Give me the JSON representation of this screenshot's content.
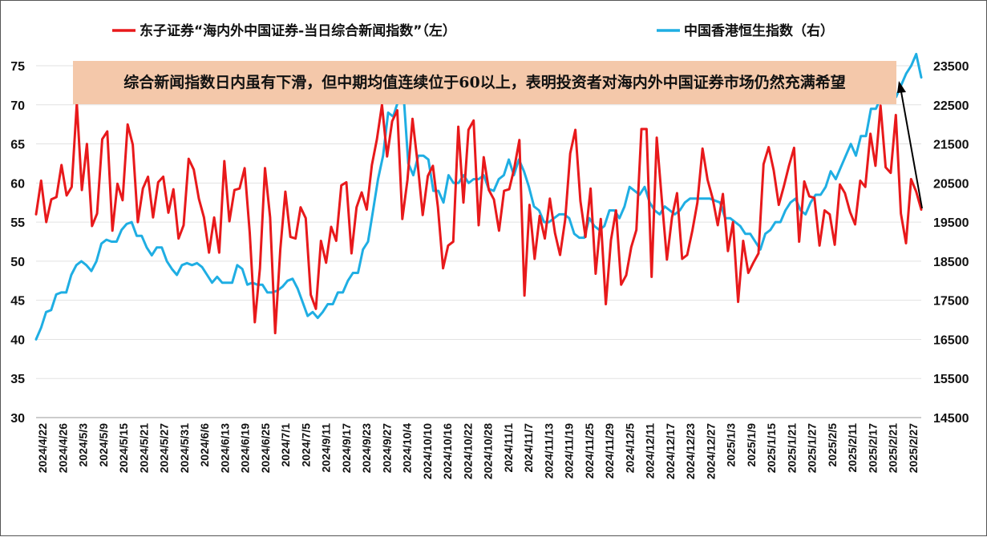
{
  "chart_data": {
    "type": "line",
    "legend": [
      {
        "name": "东子证券“海内外中国证券-当日综合新闻指数”（左）",
        "color": "#e8191b"
      },
      {
        "name": "中国香港恒生指数（右）",
        "color": "#1faee3"
      }
    ],
    "annotation": "综合新闻指数日内虽有下滑，但中期均值连续位于60以上，表明投资者对海内外中国证券市场仍然充满希望",
    "y_left": {
      "min": 30,
      "max": 75,
      "ticks": [
        30,
        35,
        40,
        45,
        50,
        55,
        60,
        65,
        70,
        75
      ]
    },
    "y_right": {
      "min": 14500,
      "max": 23500,
      "ticks": [
        14500,
        15500,
        16500,
        17500,
        18500,
        19500,
        20500,
        21500,
        22500,
        23500
      ]
    },
    "x_tick_labels": [
      "2024/4/22",
      "2024/4/26",
      "2024/5/3",
      "2024/5/9",
      "2024/5/15",
      "2024/5/21",
      "2024/5/27",
      "2024/5/31",
      "2024/6/6",
      "2024/6/13",
      "2024/6/19",
      "2024/6/25",
      "2024/7/1",
      "2024/7/5",
      "2024/9/11",
      "2024/9/17",
      "2024/9/23",
      "2024/9/27",
      "2024/10/4",
      "2024/10/10",
      "2024/10/16",
      "2024/10/22",
      "2024/10/28",
      "2024/11/1",
      "2024/11/7",
      "2024/11/13",
      "2024/11/19",
      "2024/11/25",
      "2024/11/29",
      "2024/12/5",
      "2024/12/11",
      "2024/12/17",
      "2024/12/23",
      "2024/12/27",
      "2025/1/3",
      "2025/1/9",
      "2025/1/15",
      "2025/1/21",
      "2025/1/27",
      "2025/2/5",
      "2025/2/11",
      "2025/2/17",
      "2025/2/21",
      "2025/2/27"
    ],
    "series": [
      {
        "name": "东子证券“海内外中国证券-当日综合新闻指数”（左）",
        "axis": "left",
        "color": "#e8191b",
        "values": [
          56,
          60.3,
          55,
          57.9,
          58.2,
          62.3,
          58.4,
          59.5,
          70.2,
          59.1,
          65,
          54.5,
          56.1,
          65.6,
          66.6,
          53.9,
          59.9,
          57.8,
          67.5,
          64.9,
          55,
          59.3,
          60.8,
          55.6,
          60.1,
          60.8,
          56.2,
          59.2,
          52.9,
          54.6,
          63.1,
          61.7,
          58,
          55.6,
          51.1,
          55.6,
          51.1,
          62.8,
          55.1,
          59.1,
          59.3,
          61.9,
          53.6,
          42.2,
          49.1,
          61.9,
          55.6,
          40.8,
          51.5,
          58.9,
          53.1,
          52.9,
          56.9,
          55.5,
          45.7,
          43.9,
          52.6,
          49.8,
          54.4,
          52.6,
          59.7,
          60.1,
          51,
          56.9,
          58.8,
          56.6,
          62.3,
          65.6,
          70,
          63.4,
          67.9,
          69.3,
          55.4,
          60.4,
          68.2,
          62.5,
          55.9,
          60.9,
          62.2,
          56.9,
          49.1,
          52,
          52.5,
          67.2,
          57.5,
          66.8,
          68,
          54.6,
          63.3,
          59.1,
          57.9,
          53.9,
          59,
          59.2,
          61.9,
          65.5,
          45.6,
          57.2,
          50.3,
          55.8,
          52.9,
          58,
          53.6,
          50.8,
          55.3,
          63.8,
          66.8,
          57.7,
          53.1,
          59.3,
          48.4,
          55.4,
          44.5,
          52.7,
          56.5,
          47,
          48.2,
          51.8,
          54,
          66.9,
          66.9,
          48,
          65.8,
          57.9,
          50.2,
          55.6,
          58.7,
          50.3,
          50.8,
          53.9,
          57.5,
          64.4,
          60.4,
          58,
          54.6,
          58.6,
          51.3,
          55,
          44.8,
          52.6,
          48.5,
          49.8,
          51,
          62.4,
          64.6,
          61.6,
          57.2,
          59.6,
          62.2,
          64.5,
          52.5,
          60.2,
          58.3,
          58.1,
          52,
          56.5,
          56,
          52.1,
          59.8,
          58.7,
          56.3,
          54.7,
          60.3,
          59.5,
          66.3,
          62.2,
          69.9,
          62,
          61.3,
          68.7,
          56.1,
          52.3,
          60.5,
          58.9,
          56.6
        ]
      },
      {
        "name": "中国香港恒生指数（右）",
        "axis": "right",
        "color": "#1faee3",
        "values": [
          16500,
          16800,
          17200,
          17250,
          17650,
          17700,
          17700,
          18150,
          18400,
          18500,
          18400,
          18250,
          18500,
          18950,
          19050,
          19000,
          19000,
          19300,
          19450,
          19500,
          19150,
          19150,
          18850,
          18650,
          18850,
          18850,
          18500,
          18300,
          18150,
          18400,
          18450,
          18400,
          18450,
          18350,
          18150,
          17950,
          18100,
          17950,
          17950,
          17950,
          18400,
          18300,
          17900,
          17950,
          17900,
          17900,
          17700,
          17700,
          17750,
          17850,
          18000,
          18050,
          17800,
          17450,
          17100,
          17200,
          17050,
          17200,
          17400,
          17400,
          17700,
          17700,
          18000,
          18200,
          18200,
          18800,
          19000,
          19800,
          20600,
          21200,
          22300,
          22200,
          22600,
          22900,
          21000,
          20700,
          21200,
          21200,
          21100,
          20300,
          20300,
          20000,
          20700,
          20500,
          20500,
          20700,
          20500,
          20600,
          20600,
          20700,
          20350,
          20300,
          20600,
          20700,
          21100,
          20700,
          21100,
          20800,
          20400,
          19900,
          19800,
          19500,
          19500,
          19600,
          19700,
          19700,
          19600,
          19200,
          19100,
          19100,
          19600,
          19400,
          19300,
          19400,
          19800,
          19800,
          19600,
          19900,
          20400,
          20300,
          20200,
          20400,
          20000,
          19800,
          19700,
          19900,
          19800,
          19700,
          19800,
          20000,
          20100,
          20100,
          20100,
          20100,
          20100,
          20050,
          20000,
          19600,
          19600,
          19500,
          19400,
          19200,
          19200,
          19000,
          18800,
          19200,
          19300,
          19500,
          19500,
          19800,
          20000,
          20100,
          19800,
          19700,
          20000,
          20200,
          20200,
          20400,
          20800,
          20600,
          20900,
          21200,
          21500,
          21200,
          21700,
          21700,
          22400,
          22400,
          22700,
          22900,
          22600,
          22700,
          23000,
          23300,
          23500,
          23800,
          23200
        ]
      }
    ],
    "callout_arrow_color": "#000000"
  }
}
